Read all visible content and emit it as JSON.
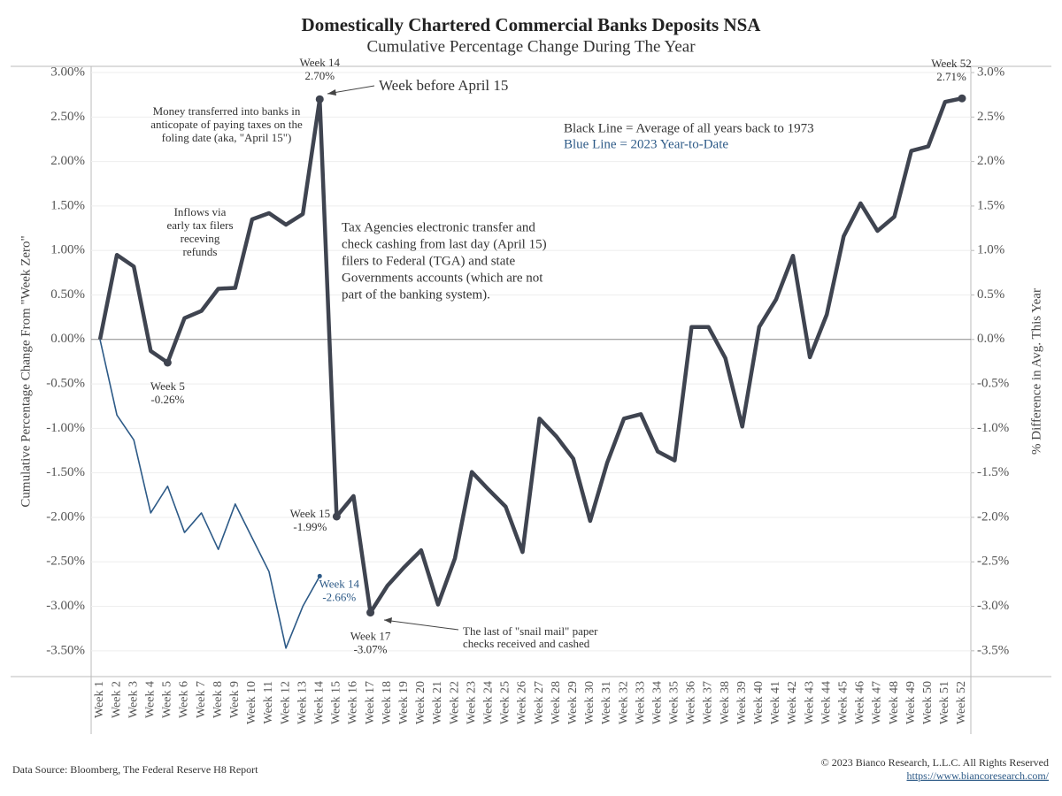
{
  "chart_data": {
    "type": "line",
    "title": "Domestically Chartered Commercial Banks Deposits NSA",
    "subtitle": "Cumulative Percentage Change During The Year",
    "y_label": "Cumulative Percentage Change From \"Week Zero\"",
    "y2_label": "% Difference in Avg. This Year",
    "categories": [
      "Week 1",
      "Week 2",
      "Week 3",
      "Week 4",
      "Week 5",
      "Week 6",
      "Week 7",
      "Week 8",
      "Week 9",
      "Week 10",
      "Week 11",
      "Week 12",
      "Week 13",
      "Week 14",
      "Week 15",
      "Week 16",
      "Week 17",
      "Week 18",
      "Week 19",
      "Week 20",
      "Week 21",
      "Week 22",
      "Week 23",
      "Week 24",
      "Week 25",
      "Week 26",
      "Week 27",
      "Week 28",
      "Week 29",
      "Week 30",
      "Week 31",
      "Week 32",
      "Week 33",
      "Week 34",
      "Week 35",
      "Week 36",
      "Week 37",
      "Week 38",
      "Week 39",
      "Week 40",
      "Week 41",
      "Week 42",
      "Week 43",
      "Week 44",
      "Week 45",
      "Week 46",
      "Week 47",
      "Week 48",
      "Week 49",
      "Week 50",
      "Week 51",
      "Week 52"
    ],
    "series": [
      {
        "name": "Black Line = Average of all years back to 1973",
        "color": "#3f4450",
        "values": [
          0,
          0.95,
          0.82,
          -0.13,
          -0.26,
          0.24,
          0.32,
          0.57,
          0.58,
          1.35,
          1.42,
          1.29,
          1.41,
          2.7,
          -1.99,
          -1.76,
          -3.07,
          -2.77,
          -2.56,
          -2.37,
          -2.98,
          -2.46,
          -1.49,
          -1.69,
          -1.88,
          -2.39,
          -0.89,
          -1.09,
          -1.34,
          -2.04,
          -1.39,
          -0.89,
          -0.84,
          -1.26,
          -1.36,
          0.14,
          0.14,
          -0.21,
          -0.98,
          0.14,
          0.45,
          0.94,
          -0.2,
          0.28,
          1.16,
          1.53,
          1.22,
          1.38,
          2.12,
          2.17,
          2.67,
          2.71
        ],
        "value_labels": [
          null,
          null,
          null,
          null,
          "-0.26%",
          null,
          null,
          null,
          null,
          null,
          null,
          null,
          null,
          "2.70%",
          "-1.99%",
          null,
          "-3.07%",
          null,
          null,
          null,
          null,
          null,
          null,
          null,
          null,
          null,
          null,
          null,
          null,
          null,
          null,
          null,
          null,
          null,
          null,
          null,
          null,
          null,
          null,
          null,
          null,
          null,
          null,
          null,
          null,
          null,
          null,
          null,
          null,
          null,
          null,
          "2.71%"
        ]
      },
      {
        "name": "Blue Line = 2023 Year-to-Date",
        "color": "#2d5a87",
        "values": [
          0,
          -0.85,
          -1.13,
          -1.95,
          -1.65,
          -2.17,
          -1.95,
          -2.36,
          -1.85,
          -2.23,
          -2.61,
          -3.47,
          -3.0,
          -2.66,
          null,
          null,
          null,
          null,
          null,
          null,
          null,
          null,
          null,
          null,
          null,
          null,
          null,
          null,
          null,
          null,
          null,
          null,
          null,
          null,
          null,
          null,
          null,
          null,
          null,
          null,
          null,
          null,
          null,
          null,
          null,
          null,
          null,
          null,
          null,
          null,
          null,
          null
        ],
        "value_labels": [
          null,
          null,
          null,
          null,
          null,
          null,
          null,
          null,
          null,
          null,
          null,
          null,
          null,
          "-2.66%",
          null,
          null,
          null,
          null,
          null,
          null,
          null,
          null,
          null,
          null,
          null,
          null,
          null,
          null,
          null,
          null,
          null,
          null,
          null,
          null,
          null,
          null,
          null,
          null,
          null,
          null,
          null,
          null,
          null,
          null,
          null,
          null,
          null,
          null,
          null,
          null,
          null,
          null
        ]
      }
    ],
    "ylim": [
      -3.79,
      3.07
    ],
    "yticks": [
      {
        "value": -3.5,
        "label": "-3.50%"
      },
      {
        "value": -3,
        "label": "-3.00%"
      },
      {
        "value": -2.5,
        "label": "-2.50%"
      },
      {
        "value": -2,
        "label": "-2.00%"
      },
      {
        "value": -1.5,
        "label": "-1.50%"
      },
      {
        "value": -1,
        "label": "-1.00%"
      },
      {
        "value": -0.5,
        "label": "-0.50%"
      },
      {
        "value": 0,
        "label": "0.00%"
      },
      {
        "value": 0.5,
        "label": "0.50%"
      },
      {
        "value": 1,
        "label": "1.00%"
      },
      {
        "value": 1.5,
        "label": "1.50%"
      },
      {
        "value": 2,
        "label": "2.00%"
      },
      {
        "value": 2.5,
        "label": "2.50%"
      },
      {
        "value": 3,
        "label": "3.00%"
      }
    ],
    "y2lim": [
      -3.79,
      3.07
    ],
    "y2ticks": [
      {
        "value": -3.5,
        "label": "-3.5%"
      },
      {
        "value": -3,
        "label": "-3.0%"
      },
      {
        "value": -2.5,
        "label": "-2.5%"
      },
      {
        "value": -2,
        "label": "-2.0%"
      },
      {
        "value": -1.5,
        "label": "-1.5%"
      },
      {
        "value": -1,
        "label": "-1.0%"
      },
      {
        "value": -0.5,
        "label": "-0.5%"
      },
      {
        "value": 0,
        "label": "0.0%"
      },
      {
        "value": 0.5,
        "label": "0.5%"
      },
      {
        "value": 1,
        "label": "1.0%"
      },
      {
        "value": 1.5,
        "label": "1.5%"
      },
      {
        "value": 2,
        "label": "2.0%"
      },
      {
        "value": 2.5,
        "label": "2.5%"
      },
      {
        "value": 3,
        "label": "3.0%"
      }
    ],
    "grid": true,
    "annotations": [
      {
        "text": [
          "Week before April 15"
        ]
      },
      {
        "text": [
          "Money transferred into banks in",
          "anticopate of paying taxes on the",
          "foling date (aka, \"April 15\")"
        ]
      },
      {
        "text": [
          "Inflows via",
          "early tax filers",
          "receving",
          "refunds"
        ]
      },
      {
        "text": [
          "Tax Agencies electronic transfer and",
          "check cashing from last day (April 15)",
          "filers to Federal (TGA) and state",
          "Governments accounts (which are not",
          "part of the banking system)."
        ]
      },
      {
        "text": [
          "The last of \"snail mail\" paper",
          "checks received and cashed"
        ]
      }
    ],
    "source": "Data Source: Bloomberg, The Federal Reserve H8 Report",
    "copyright": "© 2023 Bianco Research, L.L.C. All Rights Reserved",
    "url": "https://www.biancoresearch.com/"
  }
}
